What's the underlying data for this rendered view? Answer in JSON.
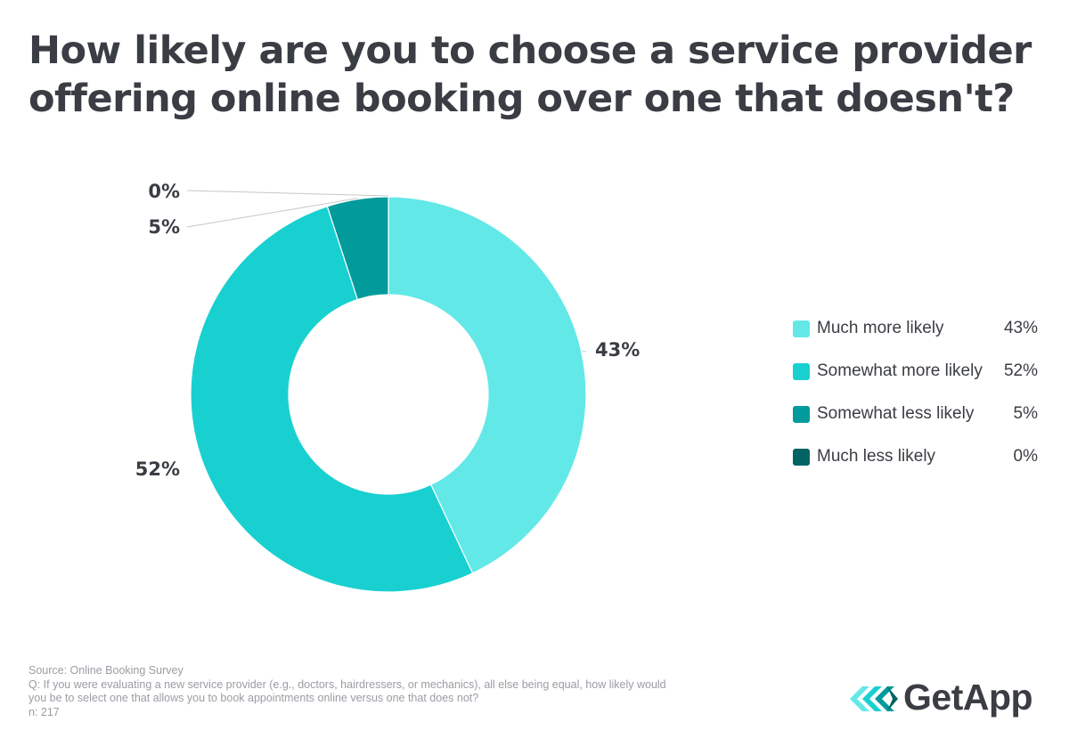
{
  "chart_data": {
    "type": "pie",
    "title_lines": [
      "How likely are you to choose a service provider",
      "offering online booking over one that doesn't?"
    ],
    "slices": [
      {
        "label": "Much more likely",
        "value": 43,
        "value_label": "43%",
        "color": "#63e8e8"
      },
      {
        "label": "Somewhat more likely",
        "value": 52,
        "value_label": "52%",
        "color": "#19d0d0"
      },
      {
        "label": "Somewhat less likely",
        "value": 5,
        "value_label": "5%",
        "color": "#029a9a"
      },
      {
        "label": "Much less likely",
        "value": 0,
        "value_label": "0%",
        "color": "#016363"
      }
    ],
    "donut": true,
    "legend_position": "right"
  },
  "footer": {
    "source": "Source: Online Booking Survey",
    "question_line1": "Q: If you were evaluating a new service provider (e.g., doctors, hairdressers, or mechanics), all else being equal, how likely would",
    "question_line2": "you be to select one that allows you to book appointments online versus one that does not?",
    "n": "n: 217"
  },
  "logo": {
    "text": "GetApp",
    "icon": "getapp-chevrons-icon"
  },
  "colors": {
    "text": "#3a3d43",
    "muted": "#9a9da3",
    "leader": "#c8c8c8"
  }
}
